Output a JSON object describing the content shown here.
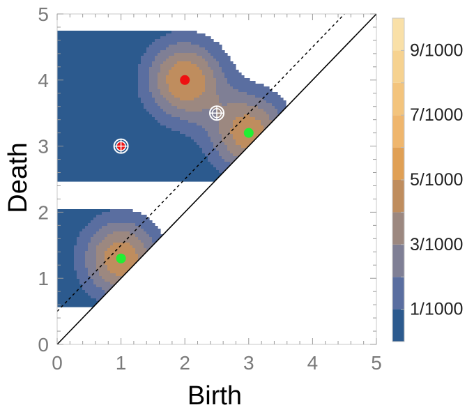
{
  "chart_data": {
    "type": "heatmap",
    "title": "",
    "xlabel": "Birth",
    "ylabel": "Death",
    "xlim": [
      0,
      5
    ],
    "ylim": [
      0,
      5
    ],
    "x_ticks": [
      "0",
      "1",
      "2",
      "3",
      "4",
      "5"
    ],
    "y_ticks": [
      "0",
      "1",
      "2",
      "3",
      "4",
      "5"
    ],
    "grid": false,
    "diagonal_line": "y = x",
    "dashed_line": {
      "slope": 1,
      "intercept": 0.5
    },
    "contour_levels": [
      0,
      0.001,
      0.002,
      0.003,
      0.004,
      0.005,
      0.006,
      0.007,
      0.008,
      0.009,
      0.01
    ],
    "level_colors": [
      "#2c5a8e",
      "#5a6ea0",
      "#7f7f95",
      "#9c8880",
      "#bf8d5e",
      "#e0a055",
      "#efb66d",
      "#f3c47d",
      "#f6d290",
      "#f9e0a8"
    ],
    "colorbar_labels": [
      {
        "value": 0.001,
        "label": "1/1000"
      },
      {
        "value": 0.003,
        "label": "3/1000"
      },
      {
        "value": 0.005,
        "label": "5/1000"
      },
      {
        "value": 0.007,
        "label": "7/1000"
      },
      {
        "value": 0.009,
        "label": "9/1000"
      }
    ],
    "density_centers": [
      {
        "x": 2.0,
        "y": 4.0,
        "weight": 0.005
      },
      {
        "x": 3.0,
        "y": 3.2,
        "weight": 0.0047
      },
      {
        "x": 1.0,
        "y": 1.3,
        "weight": 0.0048
      }
    ],
    "points": [
      {
        "x": 2.0,
        "y": 4.0,
        "color": "#ee1111",
        "style": "filled"
      },
      {
        "x": 1.0,
        "y": 3.0,
        "color": "#ee1111",
        "style": "target"
      },
      {
        "x": 3.0,
        "y": 3.2,
        "color": "#22ee33",
        "style": "filled"
      },
      {
        "x": 1.0,
        "y": 1.3,
        "color": "#22ee33",
        "style": "filled"
      },
      {
        "x": 2.5,
        "y": 3.5,
        "color": "#ffffff",
        "style": "target"
      }
    ]
  }
}
